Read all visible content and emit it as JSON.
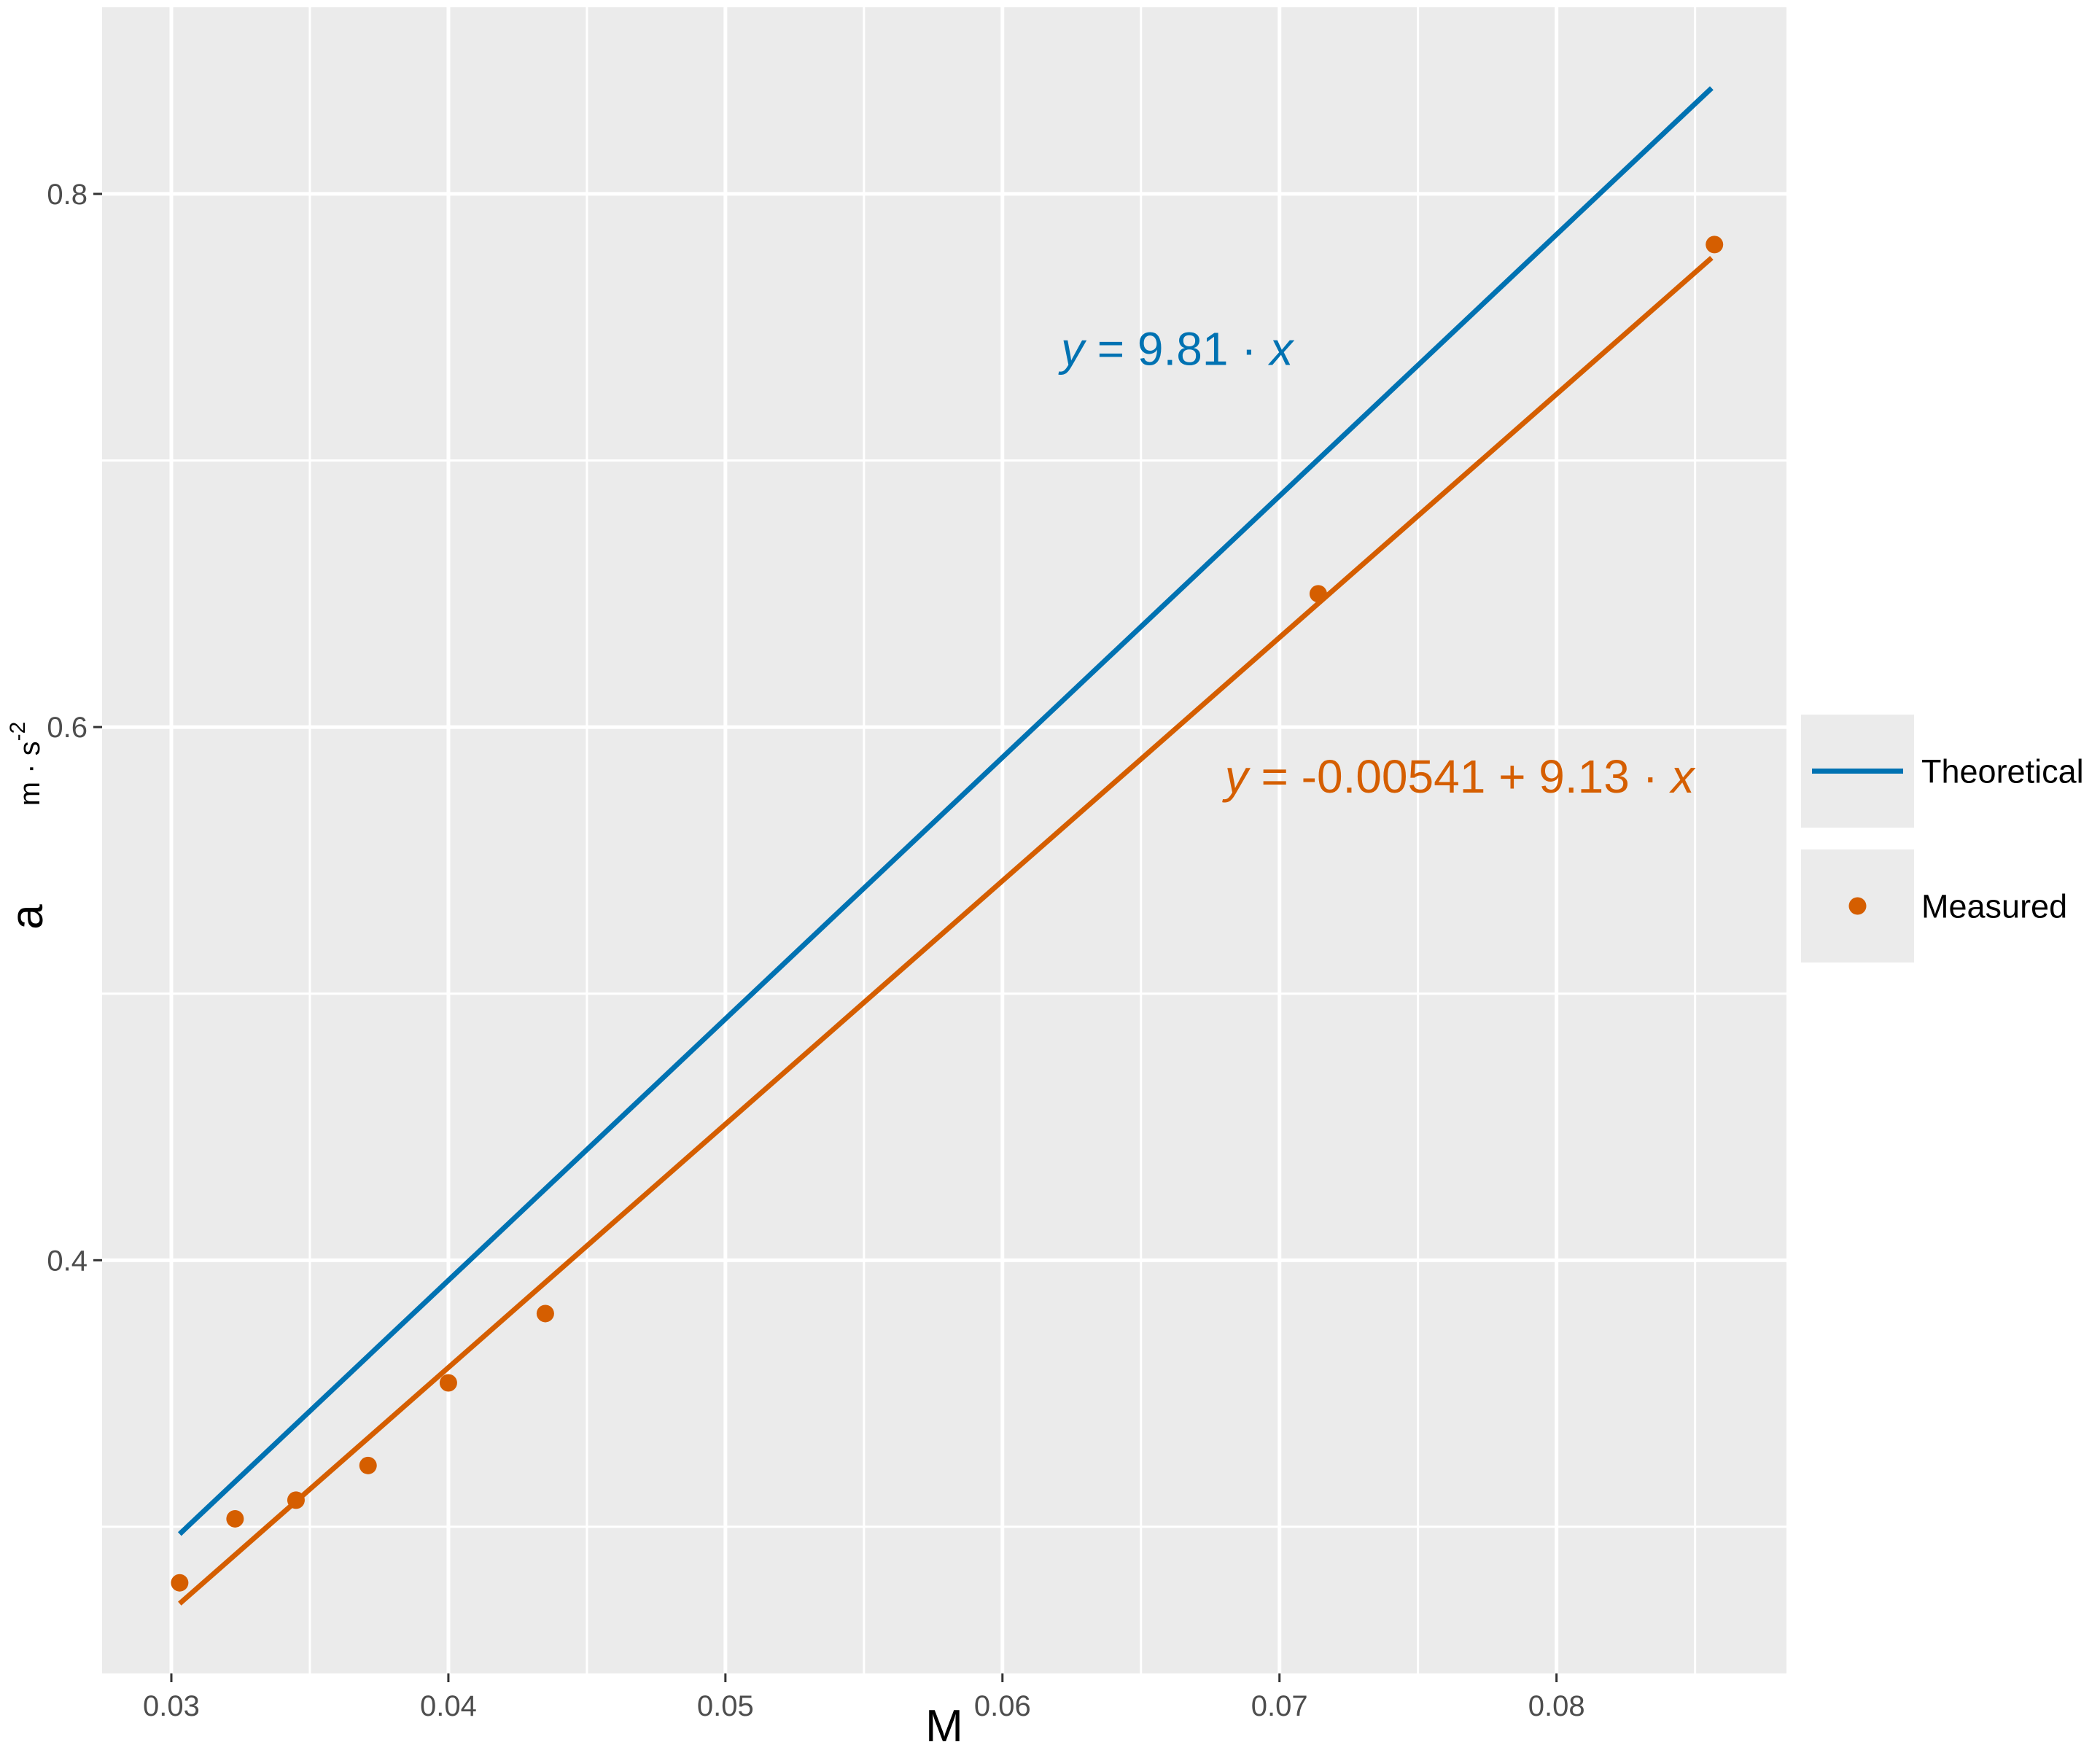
{
  "chart_data": {
    "type": "line",
    "xlabel": "M",
    "ylabel": "a",
    "ylabel_unit": {
      "base": "m · s",
      "exponent": "-2"
    },
    "xlim": [
      0.0275,
      0.0883
    ],
    "ylim": [
      0.245,
      0.87
    ],
    "x_ticks": [
      0.03,
      0.04,
      0.05,
      0.06,
      0.07,
      0.08
    ],
    "x_tick_labels": [
      "0.03",
      "0.04",
      "0.05",
      "0.06",
      "0.07",
      "0.08"
    ],
    "y_ticks": [
      0.4,
      0.6,
      0.8
    ],
    "y_tick_labels": [
      "0.4",
      "0.6",
      "0.8"
    ],
    "y_minor_gridlines": [
      0.3,
      0.5,
      0.7
    ],
    "x_minor_gridlines": [
      0.035,
      0.045,
      0.055,
      0.065,
      0.075,
      0.085
    ],
    "grid": true,
    "background": "#ebebeb",
    "legend_position": "right",
    "series": [
      {
        "name": "Theoretical",
        "kind": "line",
        "color": "#0072B2",
        "x": [
          0.0303,
          0.0856
        ],
        "y": [
          0.2973,
          0.8397
        ]
      },
      {
        "name": "Measured",
        "kind": "points_with_fit",
        "color": "#D55E00",
        "points": {
          "x": [
            0.0303,
            0.0323,
            0.0345,
            0.0371,
            0.04,
            0.0435,
            0.0714,
            0.0857
          ],
          "y": [
            0.279,
            0.303,
            0.31,
            0.323,
            0.354,
            0.38,
            0.65,
            0.781
          ]
        },
        "fit": {
          "x": [
            0.0303,
            0.0856
          ],
          "y": [
            0.2712,
            0.776
          ]
        }
      }
    ],
    "annotations": [
      {
        "series": "Theoretical",
        "x": 0.0663,
        "y": 0.7405,
        "y_prefix": "y",
        "formula": " = 9.81 ·  ",
        "x_suffix": "x"
      },
      {
        "series": "Measured",
        "x": 0.0765,
        "y": 0.58,
        "y_prefix": "y",
        "formula": " = -0.00541 + 9.13 ·  ",
        "x_suffix": "x"
      }
    ]
  }
}
